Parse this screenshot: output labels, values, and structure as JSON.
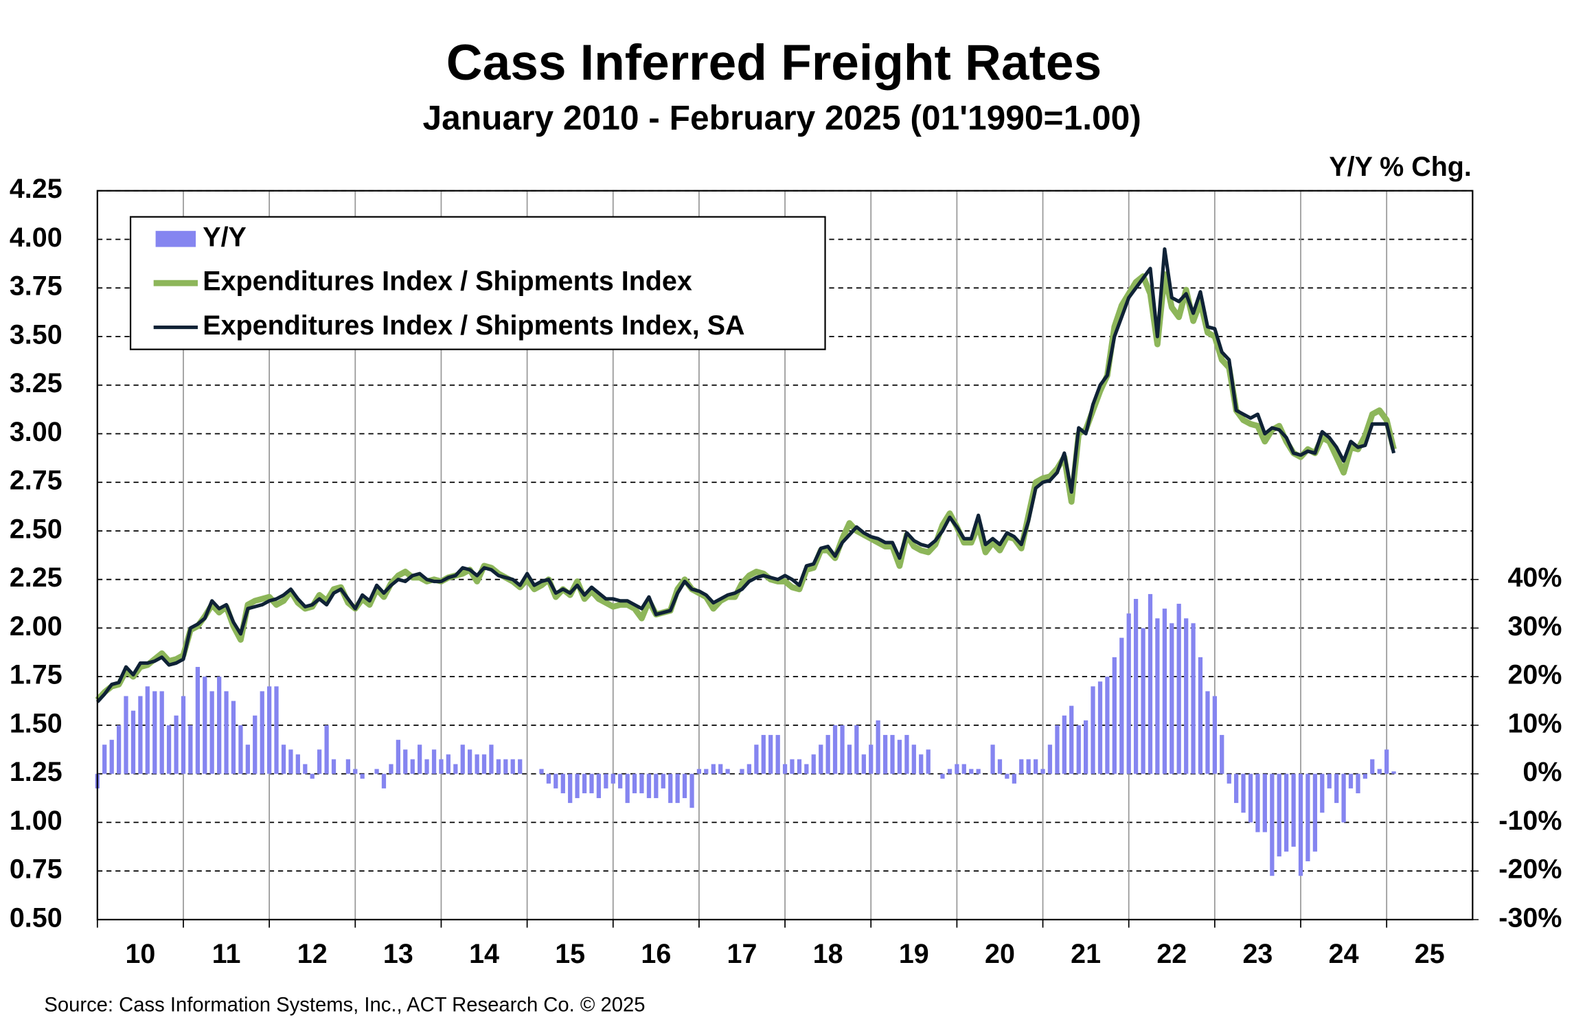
{
  "chart_data": {
    "type": "line_bar",
    "title": "Cass Inferred Freight Rates",
    "subtitle": "January 2010 - February 2025 (01'1990=1.00)",
    "y2_label": "Y/Y % Chg.",
    "source": "Source: Cass Information Systems, Inc., ACT Research Co. © 2025",
    "x": [
      10,
      10.083,
      10.167,
      10.25,
      10.333,
      10.417,
      10.5,
      10.583,
      10.667,
      10.75,
      10.833,
      10.917,
      11,
      11.083,
      11.167,
      11.25,
      11.333,
      11.417,
      11.5,
      11.583,
      11.667,
      11.75,
      11.833,
      11.917,
      12,
      12.083,
      12.167,
      12.25,
      12.333,
      12.417,
      12.5,
      12.583,
      12.667,
      12.75,
      12.833,
      12.917,
      13,
      13.083,
      13.167,
      13.25,
      13.333,
      13.417,
      13.5,
      13.583,
      13.667,
      13.75,
      13.833,
      13.917,
      14,
      14.083,
      14.167,
      14.25,
      14.333,
      14.417,
      14.5,
      14.583,
      14.667,
      14.75,
      14.833,
      14.917,
      15,
      15.083,
      15.167,
      15.25,
      15.333,
      15.417,
      15.5,
      15.583,
      15.667,
      15.75,
      15.833,
      15.917,
      16,
      16.083,
      16.167,
      16.25,
      16.333,
      16.417,
      16.5,
      16.583,
      16.667,
      16.75,
      16.833,
      16.917,
      17,
      17.083,
      17.167,
      17.25,
      17.333,
      17.417,
      17.5,
      17.583,
      17.667,
      17.75,
      17.833,
      17.917,
      18,
      18.083,
      18.167,
      18.25,
      18.333,
      18.417,
      18.5,
      18.583,
      18.667,
      18.75,
      18.833,
      18.917,
      19,
      19.083,
      19.167,
      19.25,
      19.333,
      19.417,
      19.5,
      19.583,
      19.667,
      19.75,
      19.833,
      19.917,
      20,
      20.083,
      20.167,
      20.25,
      20.333,
      20.417,
      20.5,
      20.583,
      20.667,
      20.75,
      20.833,
      20.917,
      21,
      21.083,
      21.167,
      21.25,
      21.333,
      21.417,
      21.5,
      21.583,
      21.667,
      21.75,
      21.833,
      21.917,
      22,
      22.083,
      22.167,
      22.25,
      22.333,
      22.417,
      22.5,
      22.583,
      22.667,
      22.75,
      22.833,
      22.917,
      23,
      23.083,
      23.167,
      23.25,
      23.333,
      23.417,
      23.5,
      23.583,
      23.667,
      23.75,
      23.833,
      23.917,
      24,
      24.083,
      24.167,
      24.25,
      24.333,
      24.417,
      24.5,
      24.583,
      24.667,
      24.75,
      24.833,
      24.917,
      25,
      25.083
    ],
    "xlim": [
      10,
      26
    ],
    "xticks": [
      10,
      11,
      12,
      13,
      14,
      15,
      16,
      17,
      18,
      19,
      20,
      21,
      22,
      23,
      24,
      25
    ],
    "ylim": [
      0.5,
      4.25
    ],
    "yticks": [
      {
        "value": 0.5,
        "label": "0.50"
      },
      0.75,
      {
        "value": 1,
        "label": "1.00"
      },
      1.25,
      {
        "value": 1.5,
        "label": "1.50"
      },
      1.75,
      {
        "value": 2,
        "label": "2.00"
      },
      2.25,
      {
        "value": 2.5,
        "label": "2.50"
      },
      2.75,
      {
        "value": 3,
        "label": "3.00"
      },
      3.25,
      {
        "value": 3.5,
        "label": "3.50"
      },
      3.75,
      {
        "value": 4,
        "label": "4.00"
      },
      4.25
    ],
    "y2lim": [
      -30,
      120
    ],
    "y2ticks": [
      {
        "value": -30,
        "label": "-30%"
      },
      {
        "value": -20,
        "label": "-20%"
      },
      {
        "value": -10,
        "label": "-10%"
      },
      {
        "value": 0,
        "label": "0%"
      },
      {
        "value": 10,
        "label": "10%"
      },
      {
        "value": 20,
        "label": "20%"
      },
      {
        "value": 30,
        "label": "30%"
      },
      {
        "value": 40,
        "label": "40%"
      }
    ],
    "grid": true,
    "series": [
      {
        "name": "Y/Y",
        "type": "bar",
        "axis": "y2",
        "color": "#8585f0",
        "values": [
          -3,
          6,
          7,
          10,
          16,
          13,
          16,
          18,
          17,
          17,
          10,
          12,
          16,
          10,
          22,
          20,
          17,
          20,
          17,
          15,
          10,
          6,
          12,
          17,
          18,
          18,
          6,
          5,
          4,
          2,
          -1,
          5,
          10,
          3,
          0,
          3,
          1,
          -1,
          0,
          1,
          -3,
          2,
          7,
          5,
          3,
          6,
          3,
          5,
          3,
          4,
          2,
          6,
          5,
          4,
          4,
          6,
          3,
          3,
          3,
          3,
          0,
          0,
          1,
          -2,
          -3,
          -4,
          -6,
          -5,
          -4,
          -4,
          -5,
          -3,
          -2,
          -3,
          -6,
          -4,
          -4,
          -5,
          -5,
          -3,
          -6,
          -6,
          -5,
          -7,
          1,
          1,
          2,
          2,
          1,
          0,
          1,
          2,
          6,
          8,
          8,
          8,
          2,
          3,
          3,
          2,
          4,
          6,
          8,
          10,
          10,
          6,
          10,
          4,
          6,
          11,
          8,
          8,
          7,
          8,
          6,
          4,
          5,
          0,
          -1,
          1,
          2,
          2,
          1,
          1,
          0,
          6,
          3,
          -1,
          -2,
          3,
          3,
          3,
          1,
          6,
          10,
          12,
          14,
          10,
          11,
          18,
          19,
          20,
          24,
          28,
          33,
          36,
          30,
          37,
          32,
          34,
          31,
          35,
          32,
          31,
          24,
          17,
          16,
          8,
          -2,
          -6,
          -8,
          -10,
          -12,
          -12,
          -21,
          -17,
          -16,
          -15,
          -21,
          -18,
          -16,
          -8,
          -3,
          -6,
          -10,
          -3,
          -4,
          -1,
          3,
          1,
          5,
          0.5
        ]
      },
      {
        "name": "Expenditures Index / Shipments Index",
        "type": "line",
        "color": "#8db65a",
        "values": [
          1.63,
          1.67,
          1.7,
          1.71,
          1.78,
          1.75,
          1.8,
          1.81,
          1.84,
          1.87,
          1.83,
          1.84,
          1.86,
          1.99,
          2.01,
          2.06,
          2.12,
          2.08,
          2.11,
          2.01,
          1.94,
          2.12,
          2.14,
          2.15,
          2.16,
          2.12,
          2.14,
          2.19,
          2.13,
          2.1,
          2.11,
          2.17,
          2.14,
          2.2,
          2.21,
          2.13,
          2.1,
          2.15,
          2.12,
          2.2,
          2.16,
          2.23,
          2.27,
          2.29,
          2.26,
          2.26,
          2.24,
          2.25,
          2.24,
          2.26,
          2.27,
          2.28,
          2.3,
          2.24,
          2.32,
          2.31,
          2.28,
          2.26,
          2.24,
          2.21,
          2.25,
          2.2,
          2.22,
          2.25,
          2.16,
          2.2,
          2.17,
          2.24,
          2.15,
          2.19,
          2.15,
          2.13,
          2.11,
          2.12,
          2.12,
          2.1,
          2.05,
          2.14,
          2.07,
          2.08,
          2.09,
          2.2,
          2.25,
          2.2,
          2.18,
          2.16,
          2.1,
          2.14,
          2.16,
          2.16,
          2.23,
          2.27,
          2.29,
          2.28,
          2.25,
          2.24,
          2.24,
          2.21,
          2.2,
          2.3,
          2.31,
          2.4,
          2.4,
          2.36,
          2.46,
          2.54,
          2.5,
          2.48,
          2.46,
          2.44,
          2.42,
          2.42,
          2.32,
          2.48,
          2.42,
          2.4,
          2.39,
          2.43,
          2.53,
          2.59,
          2.52,
          2.44,
          2.44,
          2.53,
          2.39,
          2.44,
          2.4,
          2.47,
          2.46,
          2.41,
          2.58,
          2.75,
          2.77,
          2.78,
          2.82,
          2.88,
          2.65,
          3.0,
          3.02,
          3.12,
          3.22,
          3.3,
          3.55,
          3.66,
          3.72,
          3.78,
          3.81,
          3.72,
          3.46,
          3.82,
          3.65,
          3.6,
          3.74,
          3.58,
          3.68,
          3.52,
          3.5,
          3.38,
          3.34,
          3.12,
          3.07,
          3.05,
          3.04,
          2.96,
          3.02,
          3.04,
          2.96,
          2.9,
          2.88,
          2.92,
          2.9,
          2.98,
          2.96,
          2.88,
          2.8,
          2.93,
          2.92,
          2.99,
          3.1,
          3.12,
          3.07,
          2.92
        ]
      },
      {
        "name": "Expenditures Index / Shipments Index, SA",
        "type": "line",
        "color": "#0f2236",
        "values": [
          1.62,
          1.66,
          1.71,
          1.72,
          1.8,
          1.76,
          1.82,
          1.82,
          1.83,
          1.85,
          1.81,
          1.82,
          1.84,
          2.0,
          2.02,
          2.05,
          2.14,
          2.1,
          2.12,
          2.03,
          1.97,
          2.1,
          2.11,
          2.12,
          2.14,
          2.15,
          2.17,
          2.2,
          2.15,
          2.11,
          2.12,
          2.15,
          2.12,
          2.18,
          2.2,
          2.15,
          2.1,
          2.17,
          2.14,
          2.22,
          2.18,
          2.22,
          2.25,
          2.24,
          2.27,
          2.28,
          2.25,
          2.24,
          2.24,
          2.26,
          2.27,
          2.31,
          2.3,
          2.27,
          2.31,
          2.3,
          2.27,
          2.26,
          2.25,
          2.22,
          2.28,
          2.22,
          2.24,
          2.25,
          2.18,
          2.2,
          2.18,
          2.22,
          2.17,
          2.21,
          2.18,
          2.15,
          2.15,
          2.14,
          2.14,
          2.12,
          2.1,
          2.16,
          2.07,
          2.08,
          2.09,
          2.18,
          2.24,
          2.2,
          2.19,
          2.17,
          2.13,
          2.15,
          2.17,
          2.18,
          2.2,
          2.24,
          2.26,
          2.27,
          2.26,
          2.25,
          2.27,
          2.25,
          2.22,
          2.32,
          2.33,
          2.41,
          2.42,
          2.37,
          2.44,
          2.48,
          2.52,
          2.49,
          2.47,
          2.46,
          2.44,
          2.44,
          2.36,
          2.49,
          2.45,
          2.43,
          2.42,
          2.45,
          2.5,
          2.57,
          2.52,
          2.46,
          2.46,
          2.58,
          2.43,
          2.46,
          2.43,
          2.49,
          2.47,
          2.43,
          2.55,
          2.72,
          2.75,
          2.76,
          2.8,
          2.9,
          2.7,
          3.03,
          3.0,
          3.15,
          3.25,
          3.3,
          3.5,
          3.6,
          3.7,
          3.75,
          3.8,
          3.85,
          3.5,
          3.95,
          3.7,
          3.68,
          3.72,
          3.62,
          3.73,
          3.55,
          3.54,
          3.42,
          3.38,
          3.12,
          3.1,
          3.08,
          3.1,
          3.0,
          3.03,
          3.02,
          2.98,
          2.9,
          2.89,
          2.91,
          2.9,
          3.01,
          2.98,
          2.93,
          2.86,
          2.96,
          2.93,
          2.94,
          3.05,
          3.05,
          3.05,
          2.9
        ]
      }
    ]
  }
}
